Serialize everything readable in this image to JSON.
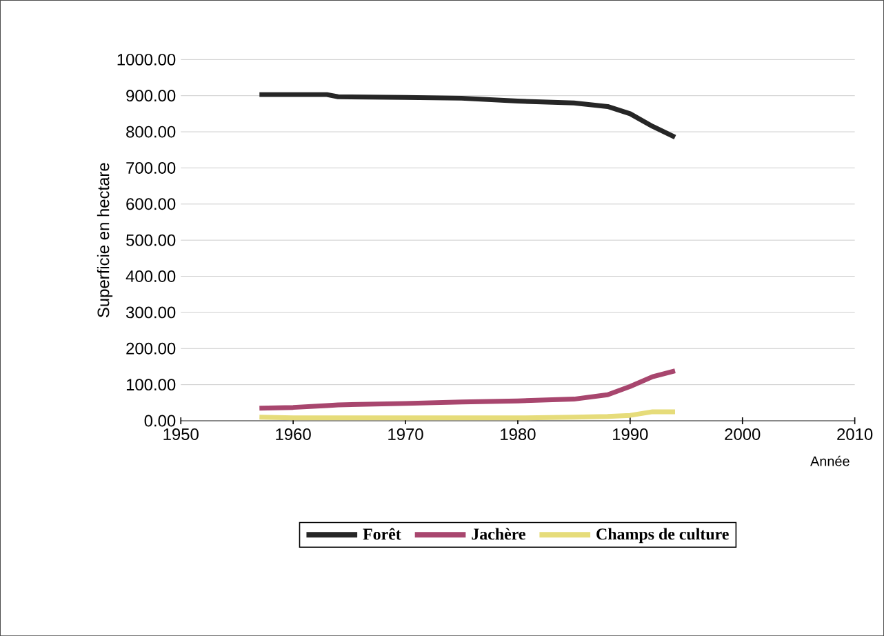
{
  "chart_data": {
    "type": "line",
    "xlabel": "Année",
    "ylabel": "Superficie en hectare",
    "xlim": [
      1950,
      2010
    ],
    "xticks": [
      1950,
      1960,
      1970,
      1980,
      1990,
      2000,
      2010
    ],
    "ylim": [
      0,
      1000
    ],
    "yticks": [
      {
        "value": 0,
        "label": "0.00"
      },
      {
        "value": 100,
        "label": "100.00"
      },
      {
        "value": 200,
        "label": "200.00"
      },
      {
        "value": 300,
        "label": "300.00"
      },
      {
        "value": 400,
        "label": "400.00"
      },
      {
        "value": 500,
        "label": "500.00"
      },
      {
        "value": 600,
        "label": "600.00"
      },
      {
        "value": 700,
        "label": "700.00"
      },
      {
        "value": 800,
        "label": "800.00"
      },
      {
        "value": 900,
        "label": "900.00"
      },
      {
        "value": 1000,
        "label": "1000.00"
      }
    ],
    "grid": "y",
    "legend": "bottom",
    "x": [
      1957,
      1960,
      1963,
      1964,
      1970,
      1975,
      1980,
      1985,
      1988,
      1990,
      1992,
      1994
    ],
    "series": [
      {
        "name": "Forêt",
        "color": "#262626",
        "values": [
          903,
          903,
          903,
          897,
          895,
          893,
          885,
          880,
          870,
          850,
          815,
          785
        ]
      },
      {
        "name": "Jachère",
        "color": "#a8466e",
        "values": [
          35,
          37,
          42,
          44,
          48,
          52,
          55,
          60,
          72,
          95,
          122,
          138
        ]
      },
      {
        "name": "Champs de culture",
        "color": "#e6dc7a",
        "values": [
          10,
          8,
          8,
          8,
          8,
          8,
          8,
          10,
          12,
          15,
          25,
          25
        ]
      }
    ]
  }
}
